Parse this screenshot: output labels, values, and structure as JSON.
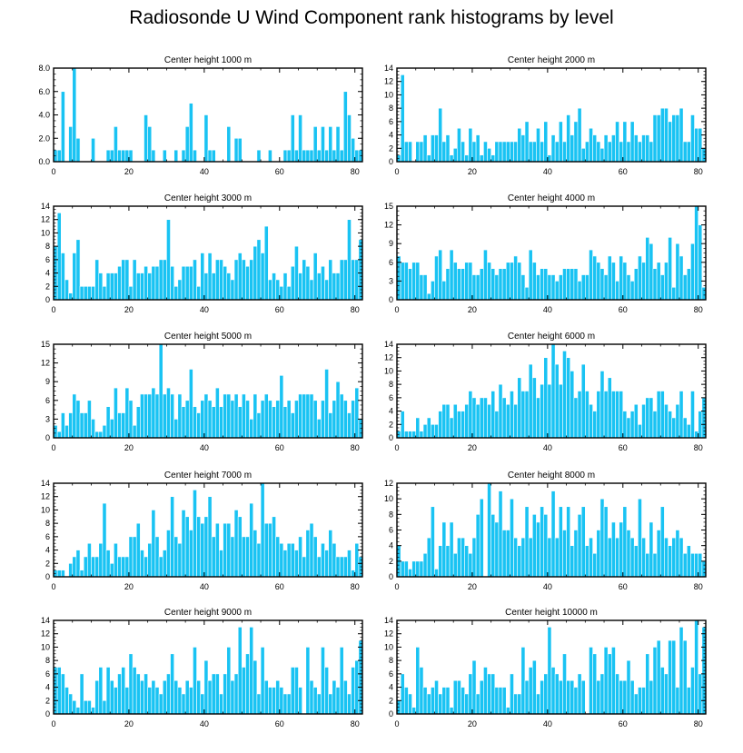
{
  "title": "Radiosonde U Wind Component rank histograms by level",
  "colors": {
    "bar": "#19c3f3",
    "bar_stroke": "#ffffff",
    "axis": "#000000"
  },
  "chart_data": [
    {
      "type": "bar",
      "title": "Center height 1000 m",
      "xlim": [
        0,
        82
      ],
      "ylim": [
        0,
        8
      ],
      "xticks": [
        0,
        20,
        40,
        60,
        80
      ],
      "yticks": [
        0,
        2,
        4,
        6,
        8
      ],
      "ytick_labels": [
        "0.0",
        "2.0",
        "4.0",
        "6.0",
        "8.0"
      ],
      "values": [
        1,
        1,
        6,
        0,
        3,
        8,
        2,
        0,
        0,
        0,
        2,
        0,
        0,
        0,
        1,
        1,
        3,
        1,
        1,
        1,
        1,
        0,
        0,
        0,
        4,
        3,
        1,
        0,
        0,
        1,
        0,
        0,
        1,
        0,
        1,
        3,
        5,
        1,
        0,
        0,
        4,
        1,
        1,
        0,
        0,
        0,
        3,
        0,
        2,
        2,
        0,
        0,
        0,
        0,
        1,
        0,
        0,
        1,
        0,
        0,
        0,
        1,
        1,
        4,
        1,
        4,
        1,
        1,
        1,
        3,
        1,
        3,
        1,
        3,
        1,
        3,
        1,
        6,
        4,
        2,
        1,
        1
      ]
    },
    {
      "type": "bar",
      "title": "Center height 2000 m",
      "xlim": [
        0,
        82
      ],
      "ylim": [
        0,
        14
      ],
      "xticks": [
        0,
        20,
        40,
        60,
        80
      ],
      "yticks": [
        0,
        2,
        4,
        6,
        8,
        10,
        12,
        14
      ],
      "ytick_labels": [
        "0",
        "2",
        "4",
        "6",
        "8",
        "10",
        "12",
        "14"
      ],
      "values": [
        1,
        13,
        3,
        3,
        0,
        3,
        3,
        4,
        1,
        4,
        4,
        8,
        3,
        4,
        1,
        2,
        5,
        3,
        1,
        5,
        3,
        4,
        1,
        3,
        2,
        1,
        3,
        3,
        3,
        3,
        3,
        3,
        5,
        4,
        6,
        3,
        3,
        5,
        3,
        6,
        1,
        4,
        3,
        6,
        3,
        7,
        4,
        6,
        8,
        2,
        3,
        5,
        4,
        3,
        2,
        4,
        3,
        4,
        6,
        3,
        6,
        3,
        6,
        4,
        3,
        4,
        4,
        3,
        7,
        7,
        8,
        8,
        6,
        7,
        7,
        8,
        3,
        3,
        7,
        5,
        5,
        2
      ]
    },
    {
      "type": "bar",
      "title": "Center height 3000 m",
      "xlim": [
        0,
        82
      ],
      "ylim": [
        0,
        14
      ],
      "xticks": [
        0,
        20,
        40,
        60,
        80
      ],
      "yticks": [
        0,
        2,
        4,
        6,
        8,
        10,
        12,
        14
      ],
      "ytick_labels": [
        "0",
        "2",
        "4",
        "6",
        "8",
        "10",
        "12",
        "14"
      ],
      "values": [
        8,
        13,
        7,
        3,
        1,
        7,
        9,
        2,
        2,
        2,
        2,
        6,
        4,
        2,
        4,
        4,
        4,
        5,
        6,
        6,
        2,
        6,
        4,
        4,
        5,
        4,
        5,
        5,
        6,
        6,
        12,
        5,
        2,
        3,
        5,
        5,
        5,
        6,
        2,
        7,
        4,
        7,
        4,
        6,
        6,
        5,
        4,
        3,
        6,
        7,
        6,
        5,
        6,
        8,
        9,
        7,
        11,
        3,
        4,
        3,
        2,
        4,
        2,
        5,
        8,
        4,
        6,
        5,
        3,
        7,
        4,
        5,
        3,
        6,
        4,
        4,
        6,
        6,
        12,
        6,
        6,
        9
      ]
    },
    {
      "type": "bar",
      "title": "Center height 4000 m",
      "xlim": [
        0,
        82
      ],
      "ylim": [
        0,
        15
      ],
      "xticks": [
        0,
        20,
        40,
        60,
        80
      ],
      "yticks": [
        0,
        3,
        6,
        9,
        12,
        15
      ],
      "ytick_labels": [
        "0",
        "3",
        "6",
        "9",
        "12",
        "15"
      ],
      "values": [
        7,
        6,
        6,
        5,
        6,
        6,
        4,
        4,
        1,
        3,
        7,
        8,
        3,
        5,
        8,
        6,
        5,
        5,
        6,
        6,
        4,
        4,
        5,
        8,
        6,
        5,
        4,
        5,
        5,
        6,
        6,
        7,
        6,
        4,
        2,
        8,
        6,
        4,
        5,
        5,
        4,
        4,
        3,
        4,
        5,
        5,
        5,
        5,
        3,
        4,
        4,
        8,
        7,
        6,
        5,
        4,
        7,
        6,
        3,
        7,
        6,
        4,
        3,
        5,
        7,
        6,
        10,
        9,
        5,
        6,
        4,
        6,
        10,
        2,
        9,
        7,
        4,
        5,
        9,
        15,
        12,
        2
      ]
    },
    {
      "type": "bar",
      "title": "Center height 5000 m",
      "xlim": [
        0,
        82
      ],
      "ylim": [
        0,
        15
      ],
      "xticks": [
        0,
        20,
        40,
        60,
        80
      ],
      "yticks": [
        0,
        3,
        6,
        9,
        12,
        15
      ],
      "ytick_labels": [
        "0",
        "3",
        "6",
        "9",
        "12",
        "15"
      ],
      "values": [
        2,
        1,
        4,
        2,
        4,
        7,
        6,
        4,
        4,
        6,
        3,
        1,
        1,
        2,
        5,
        3,
        8,
        4,
        4,
        8,
        6,
        2,
        5,
        7,
        7,
        7,
        8,
        7,
        15,
        7,
        8,
        7,
        3,
        7,
        5,
        6,
        11,
        5,
        4,
        6,
        7,
        6,
        5,
        8,
        5,
        7,
        7,
        6,
        7,
        5,
        7,
        6,
        3,
        7,
        4,
        6,
        7,
        6,
        5,
        6,
        10,
        5,
        6,
        4,
        6,
        7,
        7,
        7,
        7,
        6,
        3,
        6,
        11,
        4,
        6,
        9,
        7,
        6,
        4,
        6,
        8,
        3,
        10
      ]
    },
    {
      "type": "bar",
      "title": "Center height 6000 m",
      "xlim": [
        0,
        82
      ],
      "ylim": [
        0,
        14
      ],
      "xticks": [
        0,
        20,
        40,
        60,
        80
      ],
      "yticks": [
        0,
        2,
        4,
        6,
        8,
        10,
        12,
        14
      ],
      "ytick_labels": [
        "0",
        "2",
        "4",
        "6",
        "8",
        "10",
        "12",
        "14"
      ],
      "values": [
        1,
        4,
        1,
        1,
        1,
        3,
        1,
        2,
        3,
        2,
        2,
        4,
        5,
        5,
        3,
        5,
        4,
        4,
        5,
        7,
        6,
        5,
        6,
        6,
        5,
        7,
        4,
        8,
        6,
        5,
        7,
        5,
        9,
        7,
        7,
        11,
        9,
        6,
        8,
        12,
        8,
        14,
        11,
        8,
        13,
        12,
        10,
        6,
        7,
        11,
        7,
        5,
        4,
        7,
        10,
        7,
        9,
        7,
        7,
        7,
        4,
        3,
        4,
        5,
        2,
        5,
        6,
        6,
        4,
        7,
        7,
        5,
        4,
        3,
        5,
        7,
        3,
        2,
        7,
        1,
        4,
        6
      ]
    },
    {
      "type": "bar",
      "title": "Center height 7000 m",
      "xlim": [
        0,
        82
      ],
      "ylim": [
        0,
        14
      ],
      "xticks": [
        0,
        20,
        40,
        60,
        80
      ],
      "yticks": [
        0,
        2,
        4,
        6,
        8,
        10,
        12,
        14
      ],
      "ytick_labels": [
        "0",
        "2",
        "4",
        "6",
        "8",
        "10",
        "12",
        "14"
      ],
      "values": [
        1,
        1,
        1,
        0,
        2,
        3,
        4,
        1,
        3,
        5,
        3,
        3,
        5,
        11,
        4,
        2,
        5,
        3,
        3,
        3,
        6,
        6,
        8,
        4,
        3,
        5,
        10,
        6,
        3,
        4,
        7,
        12,
        6,
        5,
        10,
        9,
        7,
        13,
        9,
        8,
        9,
        12,
        6,
        8,
        4,
        8,
        8,
        6,
        10,
        9,
        6,
        6,
        11,
        7,
        5,
        14,
        8,
        8,
        9,
        6,
        5,
        4,
        5,
        5,
        4,
        6,
        3,
        7,
        8,
        6,
        3,
        5,
        4,
        7,
        5,
        3,
        3,
        3,
        4,
        1,
        5,
        3
      ]
    },
    {
      "type": "bar",
      "title": "Center height 8000 m",
      "xlim": [
        0,
        82
      ],
      "ylim": [
        0,
        12
      ],
      "xticks": [
        0,
        20,
        40,
        60,
        80
      ],
      "yticks": [
        0,
        2,
        4,
        6,
        8,
        10,
        12
      ],
      "ytick_labels": [
        "0",
        "2",
        "4",
        "6",
        "8",
        "10",
        "12"
      ],
      "values": [
        4,
        2,
        2,
        1,
        2,
        2,
        2,
        3,
        5,
        9,
        1,
        4,
        7,
        4,
        7,
        3,
        5,
        5,
        4,
        3,
        5,
        8,
        10,
        0,
        12,
        8,
        7,
        11,
        6,
        6,
        10,
        5,
        4,
        5,
        9,
        5,
        8,
        7,
        9,
        8,
        5,
        11,
        5,
        9,
        6,
        9,
        4,
        6,
        8,
        9,
        4,
        5,
        3,
        6,
        10,
        9,
        5,
        7,
        5,
        7,
        9,
        6,
        5,
        4,
        10,
        5,
        3,
        7,
        3,
        6,
        9,
        5,
        4,
        5,
        6,
        5,
        3,
        4,
        3,
        3,
        3,
        2,
        1
      ]
    },
    {
      "type": "bar",
      "title": "Center height 9000 m",
      "xlim": [
        0,
        82
      ],
      "ylim": [
        0,
        14
      ],
      "xticks": [
        0,
        20,
        40,
        60,
        80
      ],
      "yticks": [
        0,
        2,
        4,
        6,
        8,
        10,
        12,
        14
      ],
      "ytick_labels": [
        "0",
        "2",
        "4",
        "6",
        "8",
        "10",
        "12",
        "14"
      ],
      "values": [
        7,
        7,
        6,
        4,
        3,
        2,
        1,
        6,
        2,
        2,
        1,
        5,
        7,
        2,
        7,
        5,
        4,
        6,
        7,
        4,
        9,
        7,
        6,
        5,
        6,
        4,
        5,
        4,
        3,
        5,
        6,
        9,
        5,
        4,
        3,
        5,
        4,
        10,
        5,
        3,
        8,
        5,
        6,
        6,
        3,
        6,
        10,
        5,
        6,
        13,
        7,
        9,
        13,
        8,
        3,
        10,
        5,
        4,
        4,
        5,
        4,
        3,
        3,
        7,
        7,
        4,
        0,
        10,
        5,
        4,
        3,
        10,
        7,
        3,
        5,
        4,
        10,
        5,
        3,
        7,
        8,
        11
      ]
    },
    {
      "type": "bar",
      "title": "Center height 10000 m",
      "xlim": [
        0,
        82
      ],
      "ylim": [
        0,
        14
      ],
      "xticks": [
        0,
        20,
        40,
        60,
        80
      ],
      "yticks": [
        0,
        2,
        4,
        6,
        8,
        10,
        12,
        14
      ],
      "ytick_labels": [
        "0",
        "2",
        "4",
        "6",
        "8",
        "10",
        "12",
        "14"
      ],
      "values": [
        2,
        6,
        4,
        3,
        1,
        10,
        7,
        4,
        3,
        4,
        5,
        3,
        4,
        4,
        1,
        5,
        5,
        4,
        3,
        6,
        8,
        3,
        5,
        7,
        6,
        6,
        4,
        4,
        4,
        1,
        6,
        3,
        3,
        10,
        5,
        7,
        8,
        3,
        5,
        6,
        13,
        7,
        6,
        5,
        9,
        5,
        5,
        4,
        6,
        5,
        0,
        10,
        9,
        5,
        6,
        10,
        9,
        10,
        6,
        5,
        5,
        8,
        5,
        3,
        4,
        4,
        9,
        5,
        10,
        11,
        7,
        6,
        11,
        11,
        4,
        13,
        11,
        4,
        7,
        14,
        6,
        13
      ]
    }
  ]
}
